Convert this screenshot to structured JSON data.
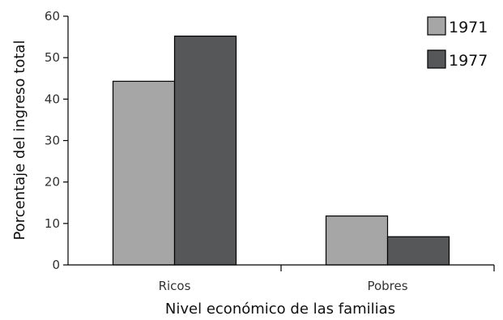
{
  "chart_data": {
    "type": "bar",
    "title": "",
    "xlabel": "Nivel económico de las familias",
    "ylabel": "Porcentaje del ingreso total",
    "categories": [
      "Ricos",
      "Pobres"
    ],
    "series": [
      {
        "name": "1971",
        "values": [
          44.3,
          11.8
        ],
        "color": "#a6a6a6"
      },
      {
        "name": "1977",
        "values": [
          55.2,
          6.8
        ],
        "color": "#555759"
      }
    ],
    "ylim": [
      0,
      60
    ],
    "yticks": [
      0,
      10,
      20,
      30,
      40,
      50,
      60
    ],
    "grid": false,
    "legend": "top-right"
  }
}
